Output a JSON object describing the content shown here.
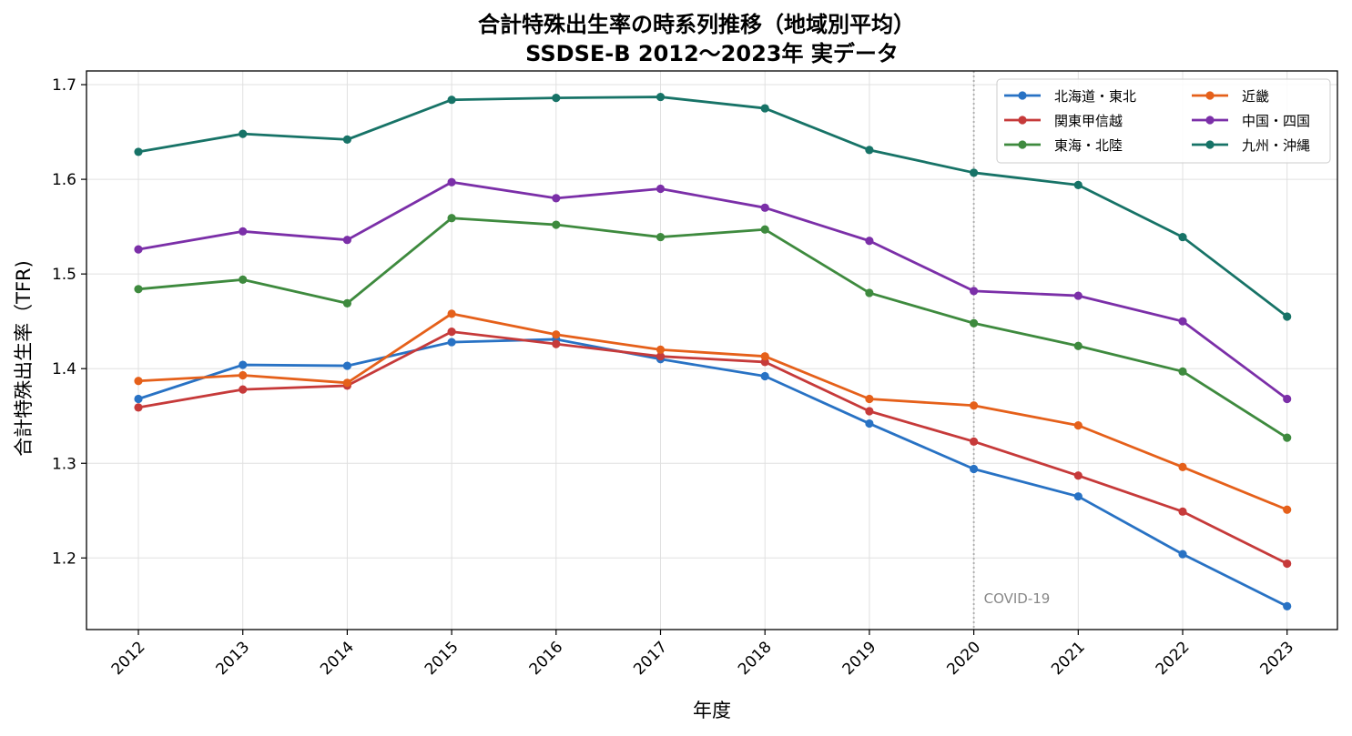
{
  "chart_data": {
    "type": "line",
    "title": "合計特殊出生率の時系列推移（地域別平均）",
    "subtitle": "SSDSE-B 2012〜2023年 実データ",
    "xlabel": "年度",
    "ylabel": "合計特殊出生率（TFR)",
    "x": [
      "2012",
      "2013",
      "2014",
      "2015",
      "2016",
      "2017",
      "2018",
      "2019",
      "2020",
      "2021",
      "2022",
      "2023"
    ],
    "yticks": [
      "1.2",
      "1.3",
      "1.4",
      "1.5",
      "1.6",
      "1.7"
    ],
    "ylim": [
      1.122,
      1.715
    ],
    "grid": true,
    "legend_position": "top-right",
    "annotation": {
      "label": "COVID-19",
      "x": "2020"
    },
    "series": [
      {
        "name": "北海道・東北",
        "color": "#2872c4",
        "values": [
          1.368,
          1.404,
          1.403,
          1.428,
          1.431,
          1.41,
          1.392,
          1.342,
          1.294,
          1.265,
          1.204,
          1.149
        ]
      },
      {
        "name": "関東甲信越",
        "color": "#c63a3a",
        "values": [
          1.359,
          1.378,
          1.382,
          1.439,
          1.426,
          1.413,
          1.407,
          1.355,
          1.323,
          1.287,
          1.249,
          1.194
        ]
      },
      {
        "name": "東海・北陸",
        "color": "#3e8a3e",
        "values": [
          1.484,
          1.494,
          1.469,
          1.559,
          1.552,
          1.539,
          1.547,
          1.48,
          1.448,
          1.424,
          1.397,
          1.327
        ]
      },
      {
        "name": "近畿",
        "color": "#e5601a",
        "values": [
          1.387,
          1.393,
          1.385,
          1.458,
          1.436,
          1.42,
          1.413,
          1.368,
          1.361,
          1.34,
          1.296,
          1.251
        ]
      },
      {
        "name": "中国・四国",
        "color": "#7b2fa8",
        "values": [
          1.526,
          1.545,
          1.536,
          1.597,
          1.58,
          1.59,
          1.57,
          1.535,
          1.482,
          1.477,
          1.45,
          1.368
        ]
      },
      {
        "name": "九州・沖縄",
        "color": "#177367",
        "values": [
          1.629,
          1.648,
          1.642,
          1.684,
          1.686,
          1.687,
          1.675,
          1.631,
          1.607,
          1.594,
          1.539,
          1.455
        ]
      }
    ]
  }
}
